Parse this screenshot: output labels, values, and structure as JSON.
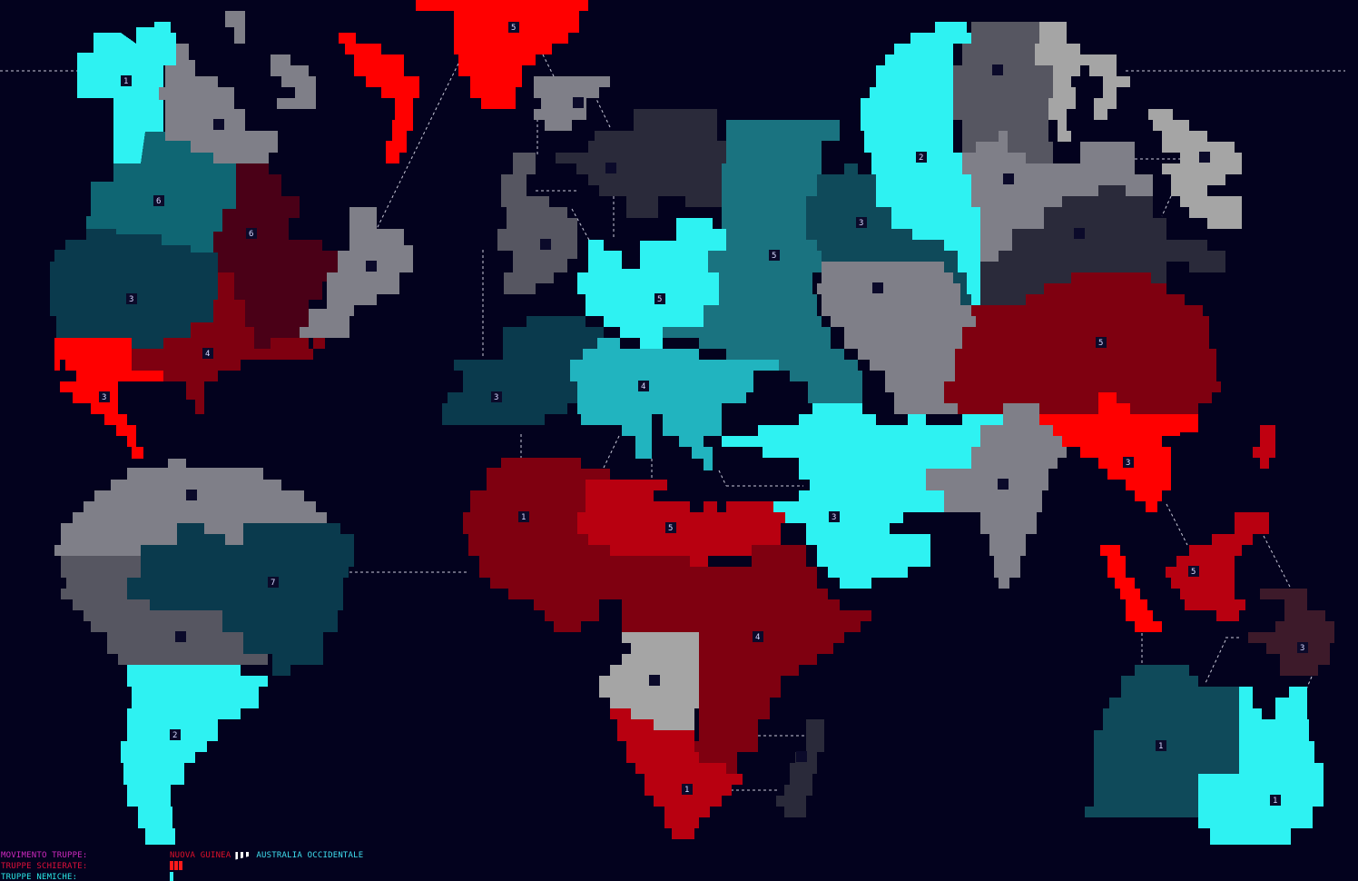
{
  "colors": {
    "background": "#03021e",
    "connection": "#c8c8d8",
    "label_movement": "#d02ac0",
    "label_deployed": "#e0103a",
    "label_enemy": "#2ae6e6",
    "from_territory": "#e0102a",
    "to_territory": "#40e0f0",
    "deployed_pip": "#ff1a1a",
    "enemy_pip": "#30f0f0"
  },
  "hud": {
    "movement_label": "MOVIMENTO TRUPPE:",
    "deployed_label": "TRUPPE SCHIERATE:",
    "enemy_label": "TRUPPE NEMICHE:",
    "move_from": "NUOVA GUINEA",
    "move_to": "AUSTRALIA OCCIDENTALE",
    "arrow_icon": "dashed-arrow-icon",
    "deployed_count": 3,
    "enemy_count": 1
  },
  "territories": [
    {
      "color": "#2ef2f2",
      "troops": "1"
    },
    {
      "color": "#7f7f88",
      "troops": ""
    },
    {
      "color": "#7f7f88",
      "troops": ""
    },
    {
      "color": "#ff0000",
      "troops": ""
    },
    {
      "color": "#ff0000",
      "troops": "5"
    },
    {
      "color": "#7f7f88",
      "troops": ""
    },
    {
      "color": "#0f6673",
      "troops": "6"
    },
    {
      "color": "#4a0017",
      "troops": "6"
    },
    {
      "color": "#7f7f88",
      "troops": ""
    },
    {
      "color": "#0a3a4d",
      "troops": "3"
    },
    {
      "color": "#7f0010",
      "troops": "4"
    },
    {
      "color": "#ff0000",
      "troops": "3"
    },
    {
      "color": "#7f7f88",
      "troops": ""
    },
    {
      "color": "#565661",
      "troops": ""
    },
    {
      "color": "#0a3a4d",
      "troops": "7"
    },
    {
      "color": "#2ef2f2",
      "troops": "2"
    },
    {
      "color": "#7f7f88",
      "troops": ""
    },
    {
      "color": "#565661",
      "troops": ""
    },
    {
      "color": "#2a2a3a",
      "troops": ""
    },
    {
      "color": "#2ef2f2",
      "troops": "5"
    },
    {
      "color": "#0a3a4d",
      "troops": "3"
    },
    {
      "color": "#21b4bf",
      "troops": "4"
    },
    {
      "color": "#1a7380",
      "troops": "5"
    },
    {
      "color": "#0f4a5a",
      "troops": "3"
    },
    {
      "color": "#2ef2f2",
      "troops": "2"
    },
    {
      "color": "#565661",
      "troops": ""
    },
    {
      "color": "#a5a5a5",
      "troops": ""
    },
    {
      "color": "#a5a5a5",
      "troops": ""
    },
    {
      "color": "#7f7f88",
      "troops": ""
    },
    {
      "color": "#2a2a3a",
      "troops": ""
    },
    {
      "color": "#7f7f88",
      "troops": ""
    },
    {
      "color": "#7f0010",
      "troops": "5"
    },
    {
      "color": "#2ef2f2",
      "troops": "3"
    },
    {
      "color": "#7f7f88",
      "troops": ""
    },
    {
      "color": "#ff0000",
      "troops": "3"
    },
    {
      "color": "#7f0010",
      "troops": "1"
    },
    {
      "color": "#b80010",
      "troops": "5"
    },
    {
      "color": "#7f0010",
      "troops": "4"
    },
    {
      "color": "#a5a5a5",
      "troops": ""
    },
    {
      "color": "#b80010",
      "troops": "1"
    },
    {
      "color": "#2a2a3a",
      "troops": ""
    },
    {
      "color": "#ff0000",
      "troops": ""
    },
    {
      "color": "#b80010",
      "troops": "5"
    },
    {
      "color": "#c00010",
      "troops": ""
    },
    {
      "color": "#3d1a2a",
      "troops": "3"
    },
    {
      "color": "#0f4a5a",
      "troops": "1"
    },
    {
      "color": "#2ef2f2",
      "troops": "1"
    }
  ]
}
